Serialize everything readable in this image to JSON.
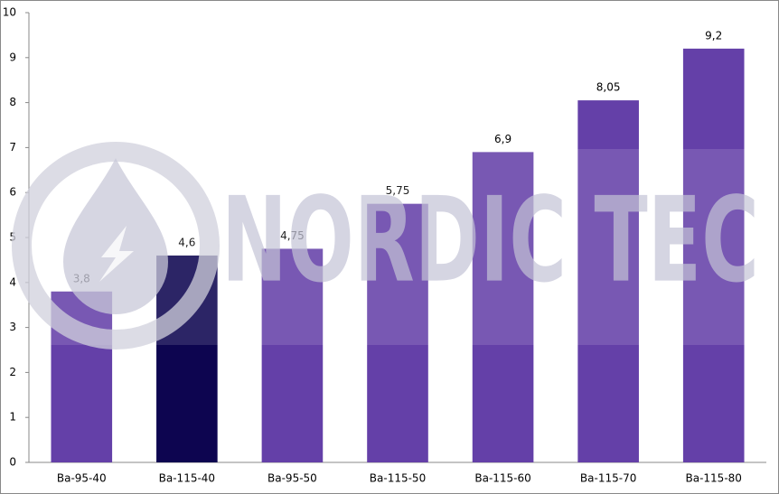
{
  "chart_data": {
    "type": "bar",
    "categories": [
      "Ba-95-40",
      "Ba-115-40",
      "Ba-95-50",
      "Ba-115-50",
      "Ba-115-60",
      "Ba-115-70",
      "Ba-115-80"
    ],
    "values": [
      3.8,
      4.6,
      4.75,
      5.75,
      6.9,
      8.05,
      9.2
    ],
    "value_labels": [
      "3,8",
      "4,6",
      "4,75",
      "5,75",
      "6,9",
      "8,05",
      "9,2"
    ],
    "colors": [
      "#6440a8",
      "#0d0550",
      "#6440a8",
      "#6440a8",
      "#6440a8",
      "#6440a8",
      "#6440a8"
    ],
    "ylim": [
      0,
      10
    ],
    "yticks": [
      0,
      1,
      2,
      3,
      4,
      5,
      6,
      7,
      8,
      9,
      10
    ],
    "watermark": "NORDIC TEC"
  }
}
